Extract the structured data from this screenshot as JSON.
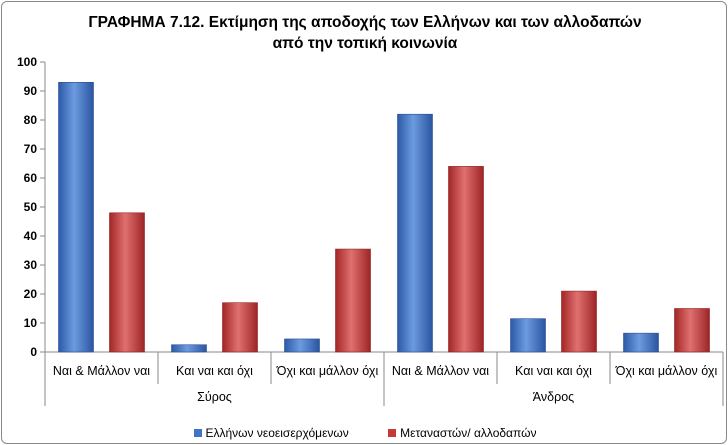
{
  "chart_data": {
    "type": "bar",
    "title_line1": "ΓΡΑΦΗΜΑ 7.12. Εκτίμηση της αποδοχής των Ελλήνων και των αλλοδαπών",
    "title_line2": "από την τοπική κοινωνία",
    "ylim": [
      0,
      100
    ],
    "yticks": [
      0,
      10,
      20,
      30,
      40,
      50,
      60,
      70,
      80,
      90,
      100
    ],
    "groups": [
      {
        "name": "Σύρος",
        "categories": [
          "Ναι & Μάλλον ναι",
          "Και ναι και όχι",
          "Όχι και μάλλον όχι"
        ]
      },
      {
        "name": "Άνδρος",
        "categories": [
          "Ναι & Μάλλον ναι",
          "Και ναι και όχι",
          "Όχι και μάλλον όχι"
        ]
      }
    ],
    "series": [
      {
        "name": "Ελλήνων νεοεισερχόμενων",
        "color": "#3f74c6",
        "values": [
          93,
          2.5,
          4.5,
          82,
          11.5,
          6.5
        ]
      },
      {
        "name": "Μεταναστών/ αλλοδαπών",
        "color": "#c43a3a",
        "values": [
          48,
          17,
          35.5,
          64,
          21,
          15
        ]
      }
    ],
    "grid": false,
    "legend_position": "bottom"
  }
}
